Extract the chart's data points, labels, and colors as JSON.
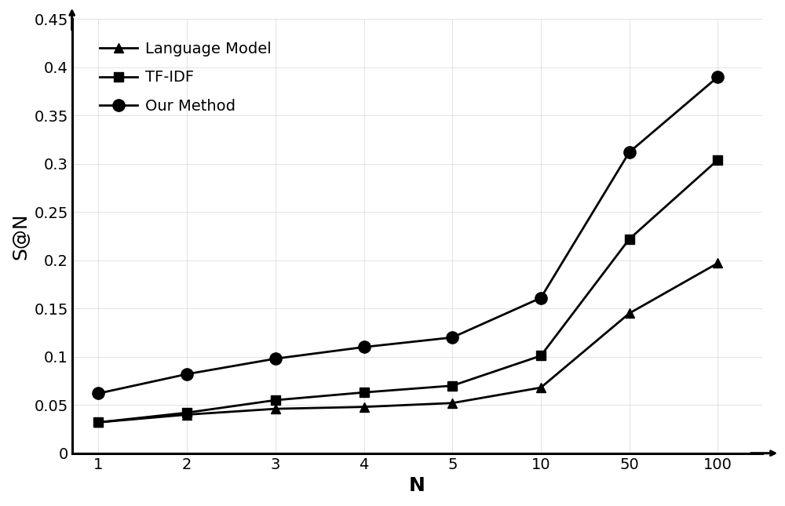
{
  "x_values": [
    1,
    2,
    3,
    4,
    5,
    10,
    50,
    100
  ],
  "x_tick_labels": [
    "1",
    "2",
    "3",
    "4",
    "5",
    "10",
    "50",
    "100"
  ],
  "language_model": [
    0.032,
    0.04,
    0.046,
    0.048,
    0.052,
    0.068,
    0.145,
    0.197
  ],
  "tf_idf": [
    0.032,
    0.042,
    0.055,
    0.063,
    0.07,
    0.101,
    0.222,
    0.304
  ],
  "our_method": [
    0.062,
    0.082,
    0.098,
    0.11,
    0.12,
    0.161,
    0.312,
    0.39
  ],
  "xlabel": "N",
  "ylabel": "S@N",
  "ylim": [
    0,
    0.45
  ],
  "yticks": [
    0,
    0.05,
    0.1,
    0.15,
    0.2,
    0.25,
    0.3,
    0.35,
    0.4,
    0.45
  ],
  "ytick_labels": [
    "0",
    "0.05",
    "0.1",
    "0.15",
    "0.2",
    "0.25",
    "0.3",
    "0.35",
    "0.4",
    "0.45"
  ],
  "legend_labels": [
    "Language Model",
    "TF-IDF",
    "Our Method"
  ],
  "line_color": "#000000",
  "background_color": "#ffffff",
  "grid_color": "#d0d0d0",
  "marker_language": "^",
  "marker_tfidf": "s",
  "marker_our": "o",
  "marker_size": 9,
  "line_width": 2.0,
  "label_fontsize": 18,
  "tick_fontsize": 14,
  "legend_fontsize": 14
}
